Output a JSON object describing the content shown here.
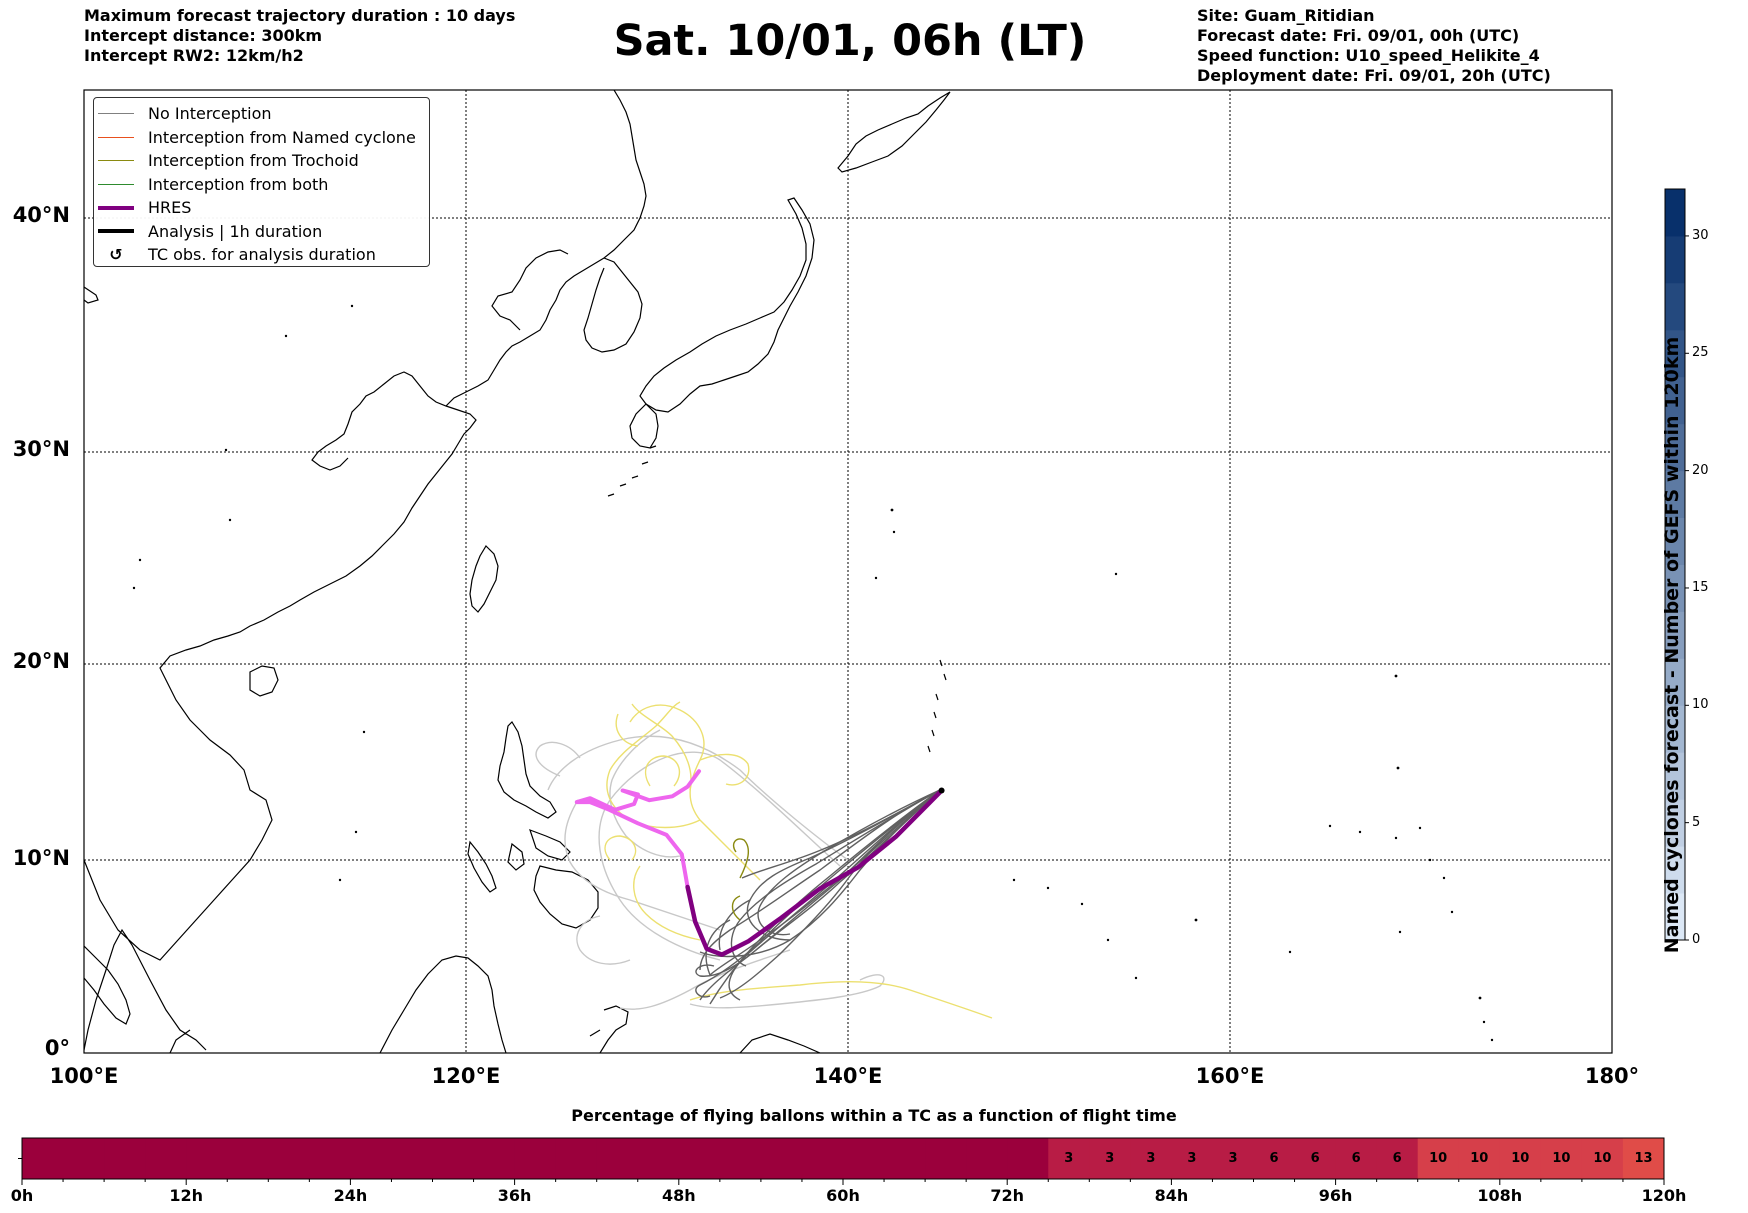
{
  "header": {
    "left_lines": [
      "Maximum forecast trajectory duration : 10 days",
      "Intercept distance: 300km",
      "Intercept RW2: 12km/h2"
    ],
    "title": "Sat. 10/01, 06h (LT)",
    "right_lines": [
      "Site: Guam_Ritidian",
      "Forecast date: Fri. 09/01, 00h (UTC)",
      "Speed function: U10_speed_Helikite_4",
      "Deployment date: Fri. 09/01, 20h (UTC)"
    ]
  },
  "legend": {
    "items": [
      {
        "label": "No Interception",
        "color": "#808080",
        "width": 1
      },
      {
        "label": "Interception from Named cyclone",
        "color": "#e8501e",
        "width": 1
      },
      {
        "label": "Interception from Trochoid",
        "color": "#8a8a10",
        "width": 1
      },
      {
        "label": "Interception from both",
        "color": "#2e8b2e",
        "width": 1
      },
      {
        "label": "HRES",
        "color": "#800080",
        "width": 4
      },
      {
        "label": "Analysis | 1h duration",
        "color": "#000000",
        "width": 4
      },
      {
        "label": "TC obs. for analysis duration",
        "icon": "cyclone-symbol-icon"
      }
    ]
  },
  "map": {
    "lat_labels": [
      "0°",
      "10°N",
      "20°N",
      "30°N",
      "40°N"
    ],
    "lon_labels": [
      "100°E",
      "120°E",
      "140°E",
      "160°E",
      "180°"
    ],
    "lon_range": [
      100,
      180
    ],
    "lat_range": [
      0,
      44
    ],
    "site": {
      "name": "Guam_Ritidian",
      "lon": 144.9,
      "lat": 13.6
    },
    "hres_track": [
      [
        144.8,
        13.5
      ],
      [
        142.5,
        11.2
      ],
      [
        140.5,
        9.6
      ],
      [
        138.5,
        8.5
      ],
      [
        136.5,
        7.0
      ],
      [
        134.8,
        5.8
      ],
      [
        133.4,
        5.1
      ],
      [
        132.6,
        5.4
      ],
      [
        132.0,
        6.8
      ],
      [
        131.6,
        8.6
      ]
    ],
    "hres_track_pink": [
      [
        131.6,
        8.6
      ],
      [
        131.3,
        10.3
      ],
      [
        130.5,
        11.3
      ],
      [
        129.0,
        11.9
      ],
      [
        127.5,
        12.6
      ],
      [
        126.5,
        13.0
      ],
      [
        125.8,
        13.0
      ],
      [
        126.5,
        13.2
      ],
      [
        127.8,
        12.6
      ],
      [
        128.8,
        12.9
      ],
      [
        129.0,
        13.4
      ],
      [
        128.2,
        13.6
      ],
      [
        129.6,
        13.1
      ],
      [
        130.8,
        13.3
      ],
      [
        131.6,
        13.8
      ],
      [
        132.2,
        14.6
      ]
    ],
    "colors": {
      "hres": "#800080",
      "hres_late": "#ee66ee",
      "no_interception": "#606060",
      "late_track": "#c8c8c8",
      "trochoid_late": "#ece070"
    }
  },
  "colorbar": {
    "title": "Named cyclones forecast - Number of GEFS within 120km",
    "ticks": [
      "0",
      "5",
      "10",
      "15",
      "20",
      "25",
      "30"
    ],
    "max": 32
  },
  "flight_bar": {
    "title": "Percentage of flying ballons within a TC as a function of flight time",
    "tick_labels": [
      "0h",
      "12h",
      "24h",
      "36h",
      "48h",
      "60h",
      "72h",
      "84h",
      "96h",
      "108h",
      "120h"
    ],
    "hours_per_cell": 3,
    "cell_values": [
      0,
      0,
      0,
      0,
      0,
      0,
      0,
      0,
      0,
      0,
      0,
      0,
      0,
      0,
      0,
      0,
      0,
      0,
      0,
      0,
      0,
      0,
      0,
      0,
      0,
      3,
      3,
      3,
      3,
      3,
      6,
      6,
      6,
      6,
      10,
      10,
      10,
      10,
      10,
      13
    ],
    "color_low": "#9b003c",
    "color_mid": "#b81c45",
    "color_high": "#d63f4a"
  }
}
